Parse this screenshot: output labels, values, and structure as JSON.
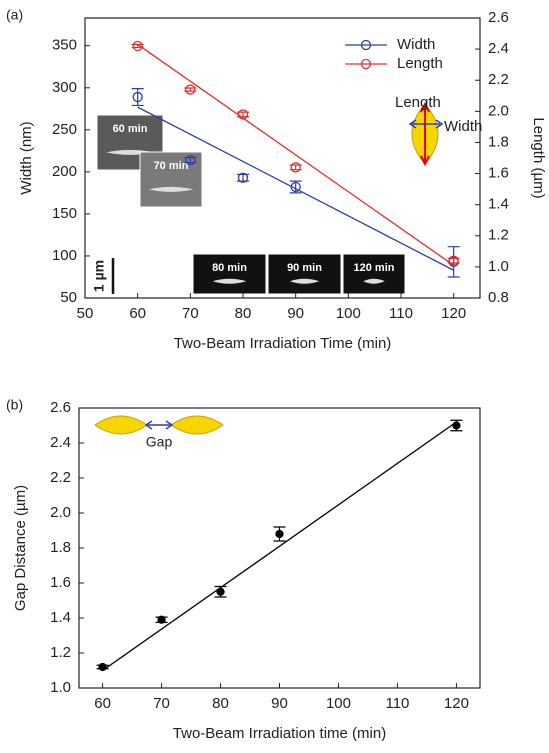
{
  "chart_data": [
    {
      "type": "scatter",
      "xlabel": "Two-Beam Irradiation Time (min)",
      "ylabel": "Width (nm)",
      "y2label": "Length (µm)",
      "x": [
        60,
        70,
        80,
        90,
        120
      ],
      "xlim": [
        50,
        125
      ],
      "xticks": [
        50,
        60,
        70,
        80,
        90,
        100,
        110,
        120
      ],
      "ylim": [
        50,
        383
      ],
      "yticks": [
        50,
        100,
        150,
        200,
        250,
        300,
        350
      ],
      "y2lim": [
        0.8,
        2.6
      ],
      "y2ticks": [
        0.8,
        {
          "value": 1,
          "label": "1.0"
        },
        1.2,
        1.4,
        1.6,
        1.8,
        {
          "value": 2,
          "label": "2.0"
        },
        2.2,
        2.4,
        2.6
      ],
      "marker": "open",
      "legend": "top-right",
      "series": [
        {
          "name": "Width",
          "color": "#2b3fa8",
          "values": [
            289,
            214,
            193,
            182,
            93
          ],
          "errors": [
            10,
            3,
            4,
            7,
            18
          ],
          "fit_x": [
            60,
            120
          ],
          "fit": [
            277,
            83
          ]
        },
        {
          "name": "Length",
          "color": "#e03030",
          "axis": "y2",
          "values": [
            2.42,
            2.14,
            1.98,
            1.64,
            1.04
          ],
          "errors": [
            0.01,
            0.01,
            0.015,
            0.015,
            0.015
          ],
          "fit_x": [
            60,
            120
          ],
          "fit": [
            2.43,
            1.01
          ]
        }
      ],
      "annotations": [
        "(a)",
        "Length",
        "Width",
        "1 µm"
      ],
      "insets": [
        "60 min",
        "70 min",
        "80 min",
        "90 min",
        "120 min"
      ]
    },
    {
      "type": "scatter",
      "xlabel": "Two-Beam Irradiation time (min)",
      "ylabel": "Gap Distance (µm)",
      "x": [
        60,
        70,
        80,
        90,
        120
      ],
      "xlim": [
        56,
        124
      ],
      "xticks": [
        60,
        70,
        80,
        90,
        100,
        110,
        120
      ],
      "ylim": [
        1,
        2.6
      ],
      "yticks": [
        {
          "value": 1,
          "label": "1.0"
        },
        1.2,
        1.4,
        1.6,
        1.8,
        {
          "value": 2,
          "label": "2.0"
        },
        2.2,
        2.4,
        2.6
      ],
      "marker": "filled",
      "series": [
        {
          "color": "#000000",
          "values": [
            1.12,
            1.39,
            1.55,
            1.88,
            2.5
          ],
          "errors": [
            0.01,
            0.015,
            0.03,
            0.04,
            0.03
          ],
          "fit_x": [
            60,
            120
          ],
          "fit": [
            1.1,
            2.52
          ]
        }
      ],
      "annotations": [
        "(b)",
        "Gap"
      ]
    }
  ]
}
